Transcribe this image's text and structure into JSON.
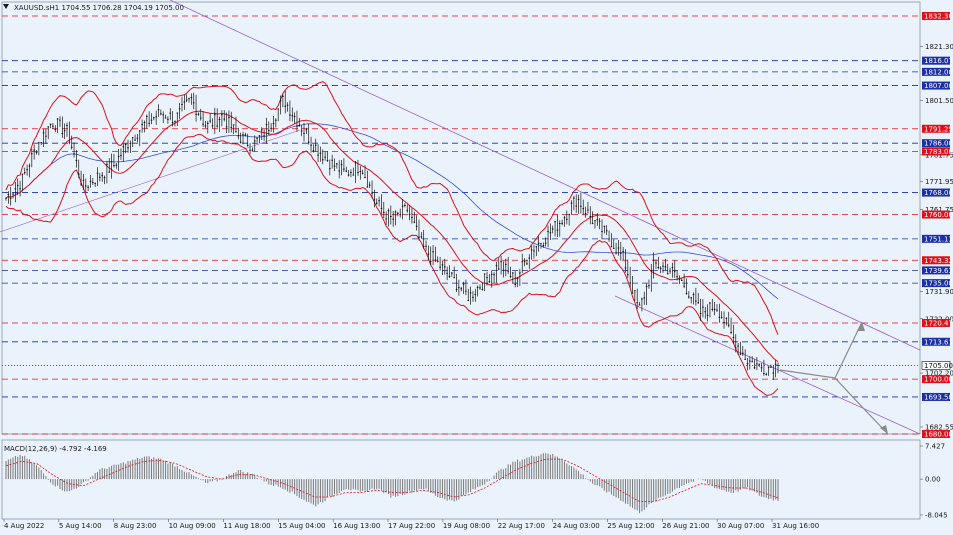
{
  "window": {
    "symbol_info": "XAUUSD.sH1 1704.55 1706.28 1704.19 1705.00",
    "macd_info": "MACD(12,26,9) -4.792 -4.169"
  },
  "colors": {
    "background": "#eaf3fb",
    "candle": "#111111",
    "bollinger": "#e0101a",
    "moving_average": "#3a4fd6",
    "trendline": "#9a5fd6",
    "support_resistance_red": "#e0101a",
    "support_resistance_blue": "#1a2fa8",
    "macd_histogram": "#7a7a7a",
    "macd_signal": "#e0101a",
    "projection_arrow": "#8a8a8a"
  },
  "chart_data": [
    {
      "type": "candlestick",
      "symbol": "XAUUSD.s",
      "timeframe": "H1",
      "ylim": [
        1680,
        1836
      ],
      "y_ticks": [
        "1821.30",
        "1801.50",
        "1781.75",
        "1771.95",
        "1761.75",
        "1731.90",
        "1722.00",
        "1702.20",
        "1682.55"
      ],
      "x_ticks": [
        "4 Aug 2022",
        "5 Aug 14:00",
        "8 Aug 23:00",
        "10 Aug 09:00",
        "11 Aug 18:00",
        "15 Aug 04:00",
        "16 Aug 13:00",
        "17 Aug 22:00",
        "19 Aug 08:00",
        "22 Aug 17:00",
        "24 Aug 03:00",
        "25 Aug 12:00",
        "26 Aug 21:00",
        "30 Aug 07:00",
        "31 Aug 16:00"
      ],
      "price_path": [
        1766,
        1772,
        1785,
        1794,
        1790,
        1770,
        1774,
        1778,
        1787,
        1793,
        1797,
        1795,
        1802,
        1792,
        1796,
        1789,
        1785,
        1792,
        1802,
        1793,
        1785,
        1779,
        1775,
        1778,
        1764,
        1758,
        1762,
        1748,
        1742,
        1736,
        1730,
        1736,
        1742,
        1736,
        1747,
        1752,
        1758,
        1766,
        1758,
        1752,
        1744,
        1725,
        1742,
        1740,
        1734,
        1724,
        1727,
        1716,
        1707,
        1704,
        1705
      ],
      "levels": [
        {
          "label": "1832.36",
          "value": 1832.36,
          "color": "red"
        },
        {
          "label": "1816.07",
          "value": 1816.07,
          "color": "blue"
        },
        {
          "label": "1812.00",
          "value": 1812.0,
          "color": "blue"
        },
        {
          "label": "1807.00",
          "value": 1807.0,
          "color": "blue"
        },
        {
          "label": "1791.25",
          "value": 1791.25,
          "color": "red"
        },
        {
          "label": "1786.00",
          "value": 1786.0,
          "color": "blue"
        },
        {
          "label": "1783.00",
          "value": 1783.0,
          "color": "red"
        },
        {
          "label": "1768.00",
          "value": 1768.0,
          "color": "blue"
        },
        {
          "label": "1760.00",
          "value": 1760.0,
          "color": "red"
        },
        {
          "label": "1751.13",
          "value": 1751.13,
          "color": "blue"
        },
        {
          "label": "1743.32",
          "value": 1743.32,
          "color": "red"
        },
        {
          "label": "1739.63",
          "value": 1739.63,
          "color": "blue"
        },
        {
          "label": "1735.00",
          "value": 1735.0,
          "color": "blue"
        },
        {
          "label": "1720.47",
          "value": 1720.47,
          "color": "red"
        },
        {
          "label": "1713.61",
          "value": 1713.61,
          "color": "blue"
        },
        {
          "label": "1705.00",
          "value": 1705.0,
          "color": "dark"
        },
        {
          "label": "1700.00",
          "value": 1700.0,
          "color": "red"
        },
        {
          "label": "1693.50",
          "value": 1693.5,
          "color": "blue"
        },
        {
          "label": "1680.00",
          "value": 1680.0,
          "color": "red"
        }
      ],
      "current_price": 1705.0,
      "grid": false
    },
    {
      "type": "bar",
      "indicator": "MACD(12,26,9)",
      "macd": -4.792,
      "signal": -4.169,
      "ylim": [
        -8.045,
        7.427
      ],
      "y_ticks": [
        "7.427",
        "0.00",
        "-8.045"
      ],
      "macd_path": [
        4,
        5.5,
        3,
        -1,
        -3,
        -1,
        2,
        3,
        4,
        5,
        4.5,
        3,
        1,
        -1,
        0,
        2,
        1,
        -1,
        -2,
        -4,
        -6,
        -4,
        -2,
        -3,
        -2,
        -4,
        -3,
        -2,
        -4,
        -5,
        -3,
        -1,
        2,
        4,
        5,
        6,
        4.5,
        2,
        -1,
        -3,
        -5,
        -7.5,
        -5,
        -3,
        -1,
        0,
        -2,
        -3,
        -2,
        -4,
        -4.8
      ],
      "signal_path": [
        3,
        4,
        3.5,
        1,
        -1,
        -1.5,
        0,
        1.5,
        3,
        4,
        4.2,
        3.5,
        2,
        0.5,
        0,
        1,
        1,
        0,
        -1,
        -2.5,
        -4,
        -4,
        -3,
        -3,
        -2.5,
        -3,
        -3,
        -2.5,
        -3,
        -4,
        -3.5,
        -2,
        0,
        2,
        3.5,
        4.5,
        4.5,
        3,
        1,
        -1,
        -3,
        -5,
        -5,
        -4,
        -2.5,
        -1,
        -1.5,
        -2,
        -2,
        -3,
        -4.2
      ]
    }
  ]
}
